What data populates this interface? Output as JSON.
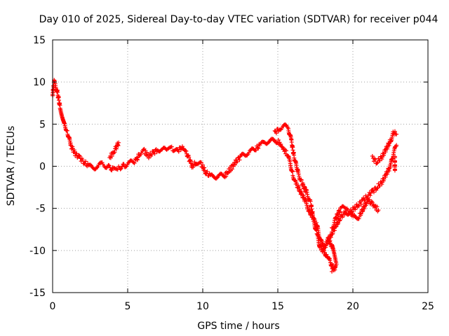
{
  "chart_data": {
    "type": "scatter",
    "title": "Day 010 of 2025, Sidereal Day-to-day VTEC variation (SDTVAR) for receiver p044",
    "xlabel": "GPS time / hours",
    "ylabel": "SDTVAR / TECUs",
    "xlim": [
      0,
      25
    ],
    "ylim": [
      -15,
      15
    ],
    "xticks": [
      "0",
      "5",
      "10",
      "15",
      "20",
      "25"
    ],
    "yticks": [
      "-15",
      "-10",
      "-5",
      "0",
      "5",
      "10",
      "15"
    ],
    "grid": true,
    "marker": "+",
    "color": "#ff0000",
    "series": [
      {
        "segments": [
          [
            [
              0.0,
              8.5
            ],
            [
              0.1,
              10.0
            ],
            [
              0.3,
              9.0
            ],
            [
              0.5,
              7.0
            ],
            [
              0.8,
              5.0
            ],
            [
              1.0,
              4.0
            ],
            [
              1.2,
              2.5
            ],
            [
              1.5,
              1.5
            ],
            [
              1.8,
              1.0
            ],
            [
              2.1,
              0.5
            ],
            [
              2.4,
              0.0
            ],
            [
              2.7,
              -0.2
            ],
            [
              3.0,
              0.0
            ],
            [
              3.3,
              0.3
            ],
            [
              3.6,
              0.0
            ],
            [
              4.0,
              -0.3
            ],
            [
              4.4,
              -0.2
            ],
            [
              4.8,
              0.1
            ],
            [
              5.1,
              0.4
            ],
            [
              5.4,
              0.5
            ],
            [
              5.6,
              0.8
            ],
            [
              5.8,
              1.5
            ],
            [
              6.1,
              1.8
            ],
            [
              6.4,
              1.2
            ],
            [
              6.7,
              1.6
            ],
            [
              7.0,
              2.0
            ],
            [
              7.3,
              2.0
            ],
            [
              7.6,
              1.9
            ],
            [
              8.0,
              2.1
            ],
            [
              8.3,
              1.8
            ],
            [
              8.6,
              2.3
            ],
            [
              8.9,
              1.7
            ],
            [
              9.1,
              0.8
            ],
            [
              9.3,
              0.0
            ],
            [
              9.6,
              0.5
            ],
            [
              9.9,
              0.2
            ],
            [
              10.2,
              -0.7
            ],
            [
              10.5,
              -1.2
            ],
            [
              10.8,
              -1.3
            ],
            [
              11.1,
              -1.0
            ],
            [
              11.4,
              -1.3
            ],
            [
              11.7,
              -0.6
            ],
            [
              12.0,
              0.0
            ],
            [
              12.3,
              0.8
            ],
            [
              12.6,
              1.2
            ],
            [
              12.9,
              1.5
            ],
            [
              13.2,
              1.8
            ],
            [
              13.5,
              2.0
            ],
            [
              13.8,
              2.5
            ],
            [
              14.1,
              2.8
            ],
            [
              14.4,
              3.0
            ],
            [
              14.7,
              3.0
            ],
            [
              15.0,
              3.0
            ],
            [
              15.2,
              2.5
            ],
            [
              15.4,
              2.0
            ],
            [
              15.6,
              1.5
            ],
            [
              15.8,
              0.5
            ],
            [
              16.0,
              -1.0
            ],
            [
              16.2,
              -2.0
            ],
            [
              16.5,
              -3.0
            ],
            [
              16.8,
              -4.0
            ],
            [
              17.0,
              -5.0
            ],
            [
              17.3,
              -6.0
            ],
            [
              17.6,
              -7.0
            ],
            [
              17.8,
              -8.5
            ],
            [
              18.0,
              -9.5
            ],
            [
              18.2,
              -10.5
            ],
            [
              18.4,
              -11.0
            ],
            [
              18.6,
              -11.8
            ],
            [
              18.8,
              -12.3
            ]
          ],
          [
            [
              3.8,
              1.0
            ],
            [
              4.1,
              1.8
            ],
            [
              4.4,
              2.8
            ]
          ],
          [
            [
              14.8,
              4.0
            ],
            [
              15.1,
              4.5
            ],
            [
              15.4,
              4.8
            ],
            [
              15.7,
              4.5
            ],
            [
              15.9,
              3.0
            ],
            [
              16.1,
              1.0
            ],
            [
              16.3,
              -0.5
            ],
            [
              16.6,
              -2.0
            ],
            [
              16.9,
              -3.0
            ],
            [
              17.2,
              -4.5
            ],
            [
              17.4,
              -6.5
            ],
            [
              17.6,
              -8.0
            ],
            [
              17.8,
              -9.5
            ],
            [
              18.0,
              -10.0
            ],
            [
              18.3,
              -9.0
            ],
            [
              18.6,
              -8.0
            ],
            [
              18.9,
              -7.0
            ],
            [
              19.2,
              -6.0
            ],
            [
              19.5,
              -5.5
            ],
            [
              19.8,
              -5.5
            ],
            [
              20.1,
              -5.0
            ],
            [
              20.4,
              -4.5
            ],
            [
              20.7,
              -4.0
            ],
            [
              21.0,
              -3.5
            ],
            [
              21.3,
              -3.0
            ],
            [
              21.6,
              -2.5
            ],
            [
              21.9,
              -2.0
            ],
            [
              22.2,
              -1.0
            ],
            [
              22.5,
              0.0
            ],
            [
              22.7,
              1.5
            ],
            [
              22.9,
              2.5
            ]
          ],
          [
            [
              18.6,
              -7.5
            ],
            [
              18.9,
              -6.0
            ],
            [
              19.2,
              -5.0
            ],
            [
              19.5,
              -5.0
            ],
            [
              19.8,
              -5.5
            ],
            [
              20.1,
              -6.0
            ],
            [
              20.4,
              -6.0
            ],
            [
              20.7,
              -5.0
            ],
            [
              21.0,
              -4.0
            ],
            [
              21.3,
              -4.5
            ],
            [
              21.7,
              -5.2
            ]
          ],
          [
            [
              18.3,
              -8.5
            ],
            [
              18.6,
              -9.5
            ],
            [
              18.9,
              -11.5
            ],
            [
              18.6,
              -12.5
            ]
          ],
          [
            [
              21.3,
              1.0
            ],
            [
              21.6,
              0.5
            ],
            [
              21.9,
              1.0
            ],
            [
              22.2,
              2.0
            ],
            [
              22.5,
              3.0
            ],
            [
              22.7,
              4.0
            ],
            [
              22.9,
              3.8
            ]
          ],
          [
            [
              22.8,
              1.0
            ],
            [
              22.8,
              0.0
            ],
            [
              22.8,
              -0.5
            ]
          ]
        ]
      }
    ]
  }
}
